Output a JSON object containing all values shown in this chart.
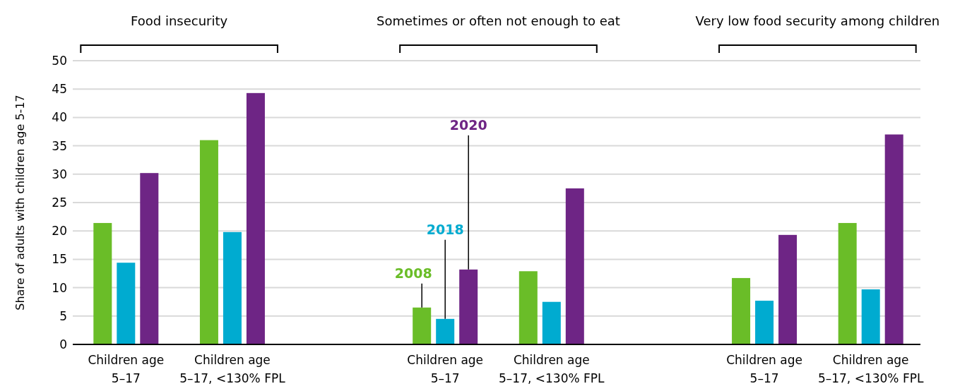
{
  "chart_data": {
    "type": "bar",
    "ylabel": "Share of adults with children age 5-17",
    "categories": [
      "Children age\n5–17",
      "Children age\n5–17, <130% FPL",
      null,
      "Children age\n5–17",
      "Children age\n5–17, <130% FPL",
      null,
      "Children age\n5–17",
      "Children age\n5–17, <130% FPL"
    ],
    "series": [
      {
        "name": "2008",
        "color": "#6abd28",
        "values": [
          21.4,
          36,
          null,
          6.5,
          12.9,
          null,
          11.7,
          21.4
        ]
      },
      {
        "name": "2018",
        "color": "#00abd0",
        "values": [
          14.4,
          19.8,
          null,
          4.5,
          7.5,
          null,
          7.7,
          9.7
        ]
      },
      {
        "name": "2020",
        "color": "#6e2585",
        "values": [
          30.2,
          44.3,
          null,
          13.2,
          27.5,
          null,
          19.3,
          37
        ]
      }
    ],
    "annotations": [
      "Food insecurity",
      "Sometimes or often not enough to eat",
      "Very low food security among children"
    ],
    "ylim": [
      0,
      50
    ],
    "yticks": [
      0,
      5,
      10,
      15,
      20,
      25,
      30,
      35,
      40,
      45,
      50
    ],
    "grid": "y",
    "legend": false
  }
}
